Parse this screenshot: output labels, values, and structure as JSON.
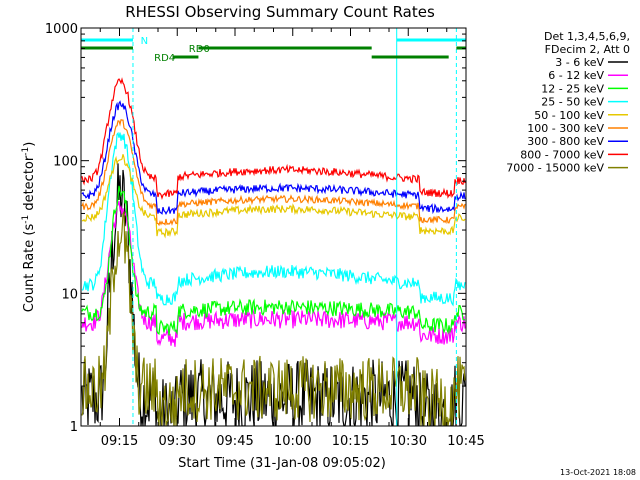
{
  "chart_data": {
    "type": "line",
    "title": "RHESSI Observing Summary Count Rates",
    "xlabel": "Start Time (31-Jan-08 09:05:02)",
    "ylabel_main": "Count Rate (s",
    "ylabel_sup": "-1",
    "ylabel_tail": " detector",
    "ylabel_end": ")",
    "yscale": "log",
    "ylim": [
      1,
      1000
    ],
    "xlim_minutes": [
      0,
      100
    ],
    "x_ticks": [
      {
        "m": 10,
        "label": "09:15"
      },
      {
        "m": 25,
        "label": "09:30"
      },
      {
        "m": 40,
        "label": "09:45"
      },
      {
        "m": 55,
        "label": "10:00"
      },
      {
        "m": 70,
        "label": "10:15"
      },
      {
        "m": 85,
        "label": "10:30"
      },
      {
        "m": 100,
        "label": "10:45"
      }
    ],
    "y_ticks": [
      {
        "v": 1,
        "label": "1"
      },
      {
        "v": 10,
        "label": "10"
      },
      {
        "v": 100,
        "label": "100"
      },
      {
        "v": 1000,
        "label": "1000"
      }
    ],
    "legend_header": [
      "Det 1,3,4,5,6,9,",
      "FDecim 2, Att 0"
    ],
    "series": [
      {
        "name": "3 - 6 keV",
        "color": "#000000",
        "base": 1.6,
        "peak": 55,
        "amp": 0,
        "noise": 0.3,
        "off": 0,
        "wide": 0.5
      },
      {
        "name": "6 - 12 keV",
        "color": "#ff00ff",
        "base": 6.2,
        "peak": 45,
        "amp": 0.03,
        "noise": 0.07,
        "off": 0,
        "wide": 0.8
      },
      {
        "name": "12 - 25 keV",
        "color": "#00ff00",
        "base": 7.5,
        "peak": 60,
        "amp": 0.05,
        "noise": 0.06,
        "off": 0,
        "wide": 0.6
      },
      {
        "name": "25 - 50 keV",
        "color": "#00ffff",
        "base": 13,
        "peak": 160,
        "amp": 0.12,
        "noise": 0.05,
        "off": 0,
        "wide": 0.8
      },
      {
        "name": "50 - 100 keV",
        "color": "#e6c800",
        "base": 40,
        "peak": 110,
        "amp": 0.08,
        "noise": 0.03,
        "off": 0,
        "wide": 1
      },
      {
        "name": "100 - 300 keV",
        "color": "#ff8000",
        "base": 48,
        "peak": 200,
        "amp": 0.07,
        "noise": 0.025,
        "off": 0,
        "wide": 1
      },
      {
        "name": "300 - 800 keV",
        "color": "#0000ff",
        "base": 58,
        "peak": 270,
        "amp": 0.07,
        "noise": 0.03,
        "off": 0,
        "wide": 1
      },
      {
        "name": "800 - 7000 keV",
        "color": "#ff0000",
        "base": 78,
        "peak": 400,
        "amp": 0.09,
        "noise": 0.03,
        "off": 0,
        "wide": 1
      },
      {
        "name": "7000 - 15000 keV",
        "color": "#808000",
        "base": 1.9,
        "peak": 30,
        "amp": 0,
        "noise": 0.25,
        "off": 0,
        "wide": 0.5
      }
    ],
    "state_bars": [
      {
        "label": "N",
        "color": "#00ffff",
        "segments": [
          [
            0,
            13.5
          ],
          [
            82,
            100
          ]
        ]
      },
      {
        "label": "RD0",
        "color": "#008000",
        "segments": [
          [
            0,
            13.5
          ],
          [
            30.5,
            75.5
          ],
          [
            97.5,
            100
          ]
        ]
      },
      {
        "label": "RD4",
        "color": "#008000",
        "segments": [
          [
            24,
            30.5
          ],
          [
            75.5,
            95.5
          ]
        ]
      }
    ],
    "vertical_markers": [
      13.5,
      82,
      97.5
    ],
    "timestamp": "13-Oct-2021 18:08"
  }
}
